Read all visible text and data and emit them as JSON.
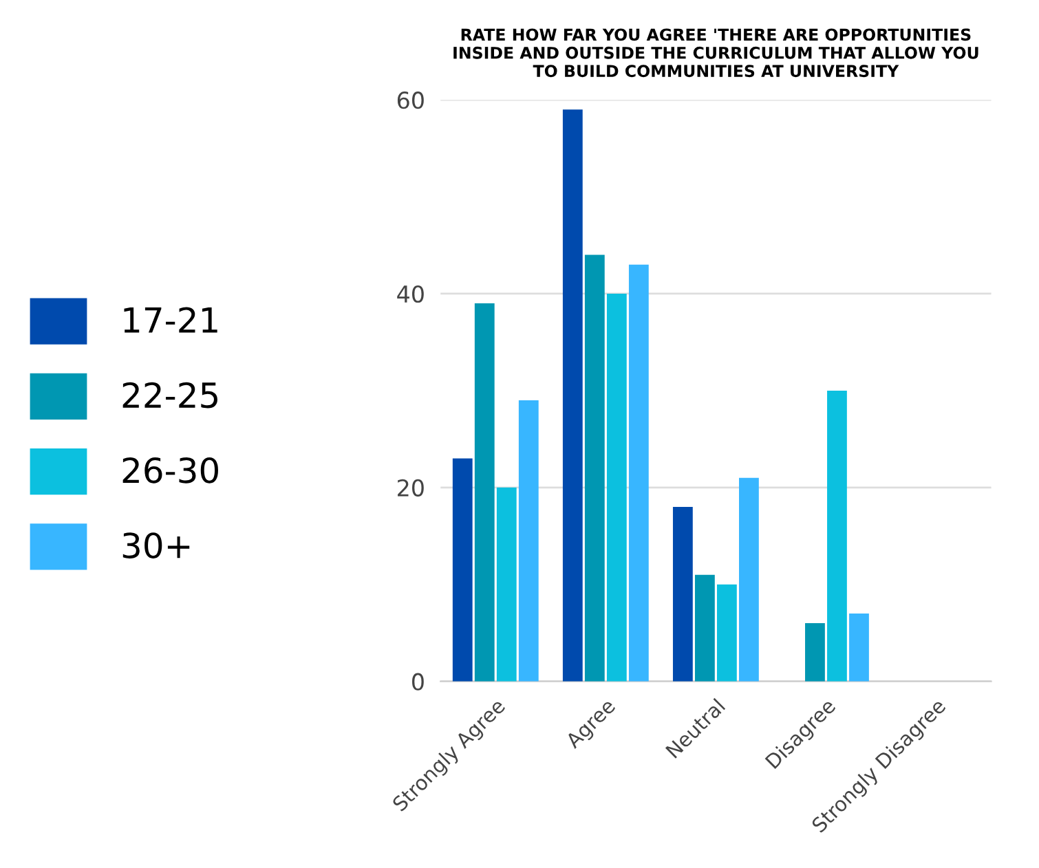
{
  "chart_data": {
    "type": "bar",
    "title": "RATE HOW FAR YOU AGREE 'THERE ARE OPPORTUNITIES\nINSIDE AND OUTSIDE THE CURRICULUM THAT ALLOW YOU\nTO BUILD COMMUNITIES AT UNIVERSITY",
    "categories": [
      "Strongly Agree",
      "Agree",
      "Neutral",
      "Disagree",
      "Strongly Disagree"
    ],
    "series": [
      {
        "name": "17-21",
        "color": "#004aad",
        "values": [
          23,
          59,
          18,
          0,
          0
        ]
      },
      {
        "name": "22-25",
        "color": "#0097b2",
        "values": [
          39,
          44,
          11,
          6,
          0
        ]
      },
      {
        "name": "26-30",
        "color": "#0cc0df",
        "values": [
          20,
          40,
          10,
          30,
          0
        ]
      },
      {
        "name": "30+",
        "color": "#38b6ff",
        "values": [
          29,
          43,
          21,
          7,
          0
        ]
      }
    ],
    "ylim": [
      0,
      60
    ],
    "yticks": [
      0,
      20,
      40,
      60
    ],
    "grid": "y",
    "legend": "left"
  }
}
